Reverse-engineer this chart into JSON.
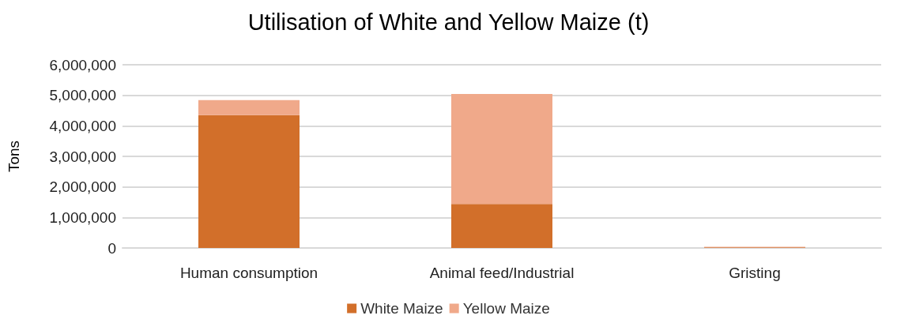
{
  "chart_data": {
    "type": "bar",
    "title": "Utilisation of White and Yellow Maize (t)",
    "ylabel": "Tons",
    "categories": [
      "Human consumption",
      "Animal feed/Industrial",
      "Gristing"
    ],
    "stacked": true,
    "series": [
      {
        "name": "White Maize",
        "color": "#d26f2a",
        "values": [
          4350000,
          1440000,
          20000
        ]
      },
      {
        "name": "Yellow Maize",
        "color": "#f0a98a",
        "values": [
          490000,
          3600000,
          20000
        ]
      }
    ],
    "ylim": [
      0,
      6000000
    ],
    "yticks": [
      0,
      {
        "value": 1000000,
        "label": "1,000,000"
      },
      {
        "value": 2000000,
        "label": "2,000,000"
      },
      {
        "value": 3000000,
        "label": "3,000,000"
      },
      {
        "value": 4000000,
        "label": "4,000,000"
      },
      {
        "value": 5000000,
        "label": "5,000,000"
      },
      {
        "value": 6000000,
        "label": "6,000,000"
      }
    ],
    "grid": "y",
    "legend": "bottom"
  }
}
